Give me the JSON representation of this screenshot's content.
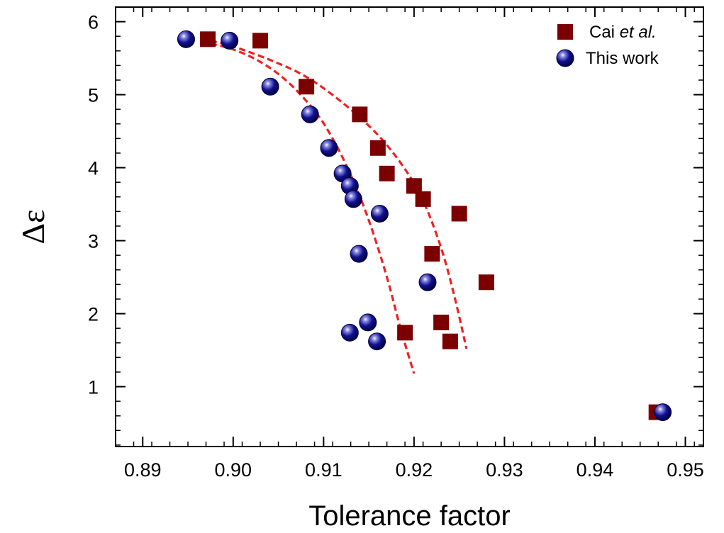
{
  "chart_data": {
    "type": "scatter",
    "title": "",
    "xlabel": "Tolerance factor",
    "ylabel": "Δε",
    "xlim": [
      0.887,
      0.952
    ],
    "ylim": [
      0.18,
      6.2
    ],
    "xticks": [
      0.89,
      0.9,
      0.91,
      0.92,
      0.93,
      0.94,
      0.95
    ],
    "xtick_labels": [
      "0.89",
      "0.90",
      "0.91",
      "0.92",
      "0.93",
      "0.94",
      "0.95"
    ],
    "yticks": [
      1,
      2,
      3,
      4,
      5,
      6
    ],
    "ytick_labels": [
      "1",
      "2",
      "3",
      "4",
      "5",
      "6"
    ],
    "x_minor_step": 0.002,
    "y_minor_step": 0.2,
    "grid": false,
    "legend_position": "top-right",
    "series": [
      {
        "name_parts": [
          "Cai ",
          "et al."
        ],
        "marker": "square",
        "color": "#7b0000",
        "points": [
          [
            0.8972,
            5.76
          ],
          [
            0.903,
            5.74
          ],
          [
            0.9081,
            5.11
          ],
          [
            0.914,
            4.73
          ],
          [
            0.916,
            4.27
          ],
          [
            0.917,
            3.92
          ],
          [
            0.92,
            3.75
          ],
          [
            0.921,
            3.57
          ],
          [
            0.925,
            3.37
          ],
          [
            0.922,
            2.82
          ],
          [
            0.928,
            2.43
          ],
          [
            0.919,
            1.74
          ],
          [
            0.923,
            1.88
          ],
          [
            0.924,
            1.62
          ],
          [
            0.9468,
            0.65
          ]
        ]
      },
      {
        "name": "This work",
        "marker": "sphere",
        "color": "#0a0a8c",
        "points": [
          [
            0.8948,
            5.76
          ],
          [
            0.8996,
            5.74
          ],
          [
            0.9041,
            5.11
          ],
          [
            0.9085,
            4.73
          ],
          [
            0.9106,
            4.27
          ],
          [
            0.9121,
            3.92
          ],
          [
            0.9129,
            3.75
          ],
          [
            0.9133,
            3.57
          ],
          [
            0.9162,
            3.37
          ],
          [
            0.9139,
            2.82
          ],
          [
            0.9215,
            2.43
          ],
          [
            0.9129,
            1.74
          ],
          [
            0.9149,
            1.88
          ],
          [
            0.9159,
            1.62
          ],
          [
            0.9475,
            0.65
          ]
        ]
      }
    ],
    "fit_curves": [
      {
        "style": "dashed",
        "color": "#ee2222",
        "points": [
          [
            0.8975,
            5.7
          ],
          [
            0.9,
            5.62
          ],
          [
            0.903,
            5.45
          ],
          [
            0.906,
            5.18
          ],
          [
            0.909,
            4.78
          ],
          [
            0.911,
            4.4
          ],
          [
            0.913,
            3.9
          ],
          [
            0.915,
            3.28
          ],
          [
            0.917,
            2.5
          ],
          [
            0.9185,
            1.8
          ],
          [
            0.92,
            1.18
          ]
        ]
      },
      {
        "style": "dashed",
        "color": "#ee2222",
        "points": [
          [
            0.8975,
            5.74
          ],
          [
            0.9,
            5.66
          ],
          [
            0.904,
            5.48
          ],
          [
            0.908,
            5.25
          ],
          [
            0.912,
            4.9
          ],
          [
            0.916,
            4.45
          ],
          [
            0.919,
            3.98
          ],
          [
            0.921,
            3.55
          ],
          [
            0.923,
            2.9
          ],
          [
            0.9245,
            2.22
          ],
          [
            0.9258,
            1.52
          ]
        ]
      }
    ]
  }
}
